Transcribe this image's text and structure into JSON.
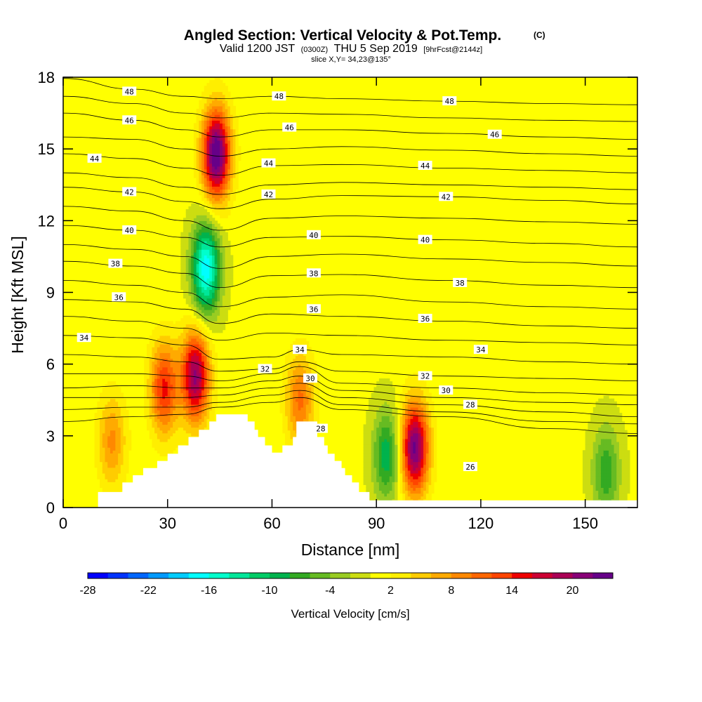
{
  "title": {
    "main": "Angled Section: Vertical Velocity & Pot.Temp.",
    "main_unit": "(C)",
    "valid_prefix": "Valid 1200 JST",
    "valid_utc": "(0300Z)",
    "valid_date": "THU 5 Sep 2019",
    "forecast": "[9hrFcst@2144z]",
    "slice": "slice X,Y= 34,23@135°"
  },
  "chart_data": {
    "type": "heatmap",
    "xlabel": "Distance [nm]",
    "ylabel": "Height [Kft MSL]",
    "xlim": [
      0,
      165
    ],
    "ylim": [
      0,
      18
    ],
    "x_ticks": [
      0,
      30,
      60,
      90,
      120,
      150
    ],
    "y_ticks": [
      0,
      3,
      6,
      9,
      12,
      15,
      18
    ],
    "colorbar": {
      "title": "Vertical Velocity [cm/s]",
      "tick_labels": [
        "-28",
        "-22",
        "-16",
        "-10",
        "-4",
        "2",
        "8",
        "14",
        "20"
      ],
      "tick_values": [
        -28,
        -22,
        -16,
        -10,
        -4,
        2,
        8,
        14,
        20
      ],
      "min": -28,
      "max": 24,
      "colors": [
        "#0000ff",
        "#0033ff",
        "#0066ff",
        "#0099ff",
        "#00ccff",
        "#00ffff",
        "#00ffcc",
        "#00e699",
        "#00cc66",
        "#00b34d",
        "#33aa22",
        "#66bb22",
        "#99cc22",
        "#ccdd11",
        "#ffff00",
        "#ffee00",
        "#ffcc00",
        "#ffaa00",
        "#ff8800",
        "#ff6600",
        "#ff4400",
        "#ee0000",
        "#cc0033",
        "#aa0055",
        "#880077",
        "#660088"
      ]
    },
    "field_features": [
      {
        "kind": "updraft",
        "x": 44,
        "y": 14.8,
        "peak": 24
      },
      {
        "kind": "downdraft",
        "x": 41,
        "y": 10.0,
        "peak": -18
      },
      {
        "kind": "updraft",
        "x": 38,
        "y": 5.5,
        "peak": 20
      },
      {
        "kind": "updraft",
        "x": 29,
        "y": 5.0,
        "peak": 14
      },
      {
        "kind": "updraft",
        "x": 14,
        "y": 2.8,
        "peak": 8
      },
      {
        "kind": "downdraft",
        "x": 93,
        "y": 2.2,
        "peak": -10
      },
      {
        "kind": "updraft",
        "x": 101,
        "y": 2.5,
        "peak": 22
      },
      {
        "kind": "downdraft",
        "x": 156,
        "y": 1.5,
        "peak": -8
      },
      {
        "kind": "updraft",
        "x": 68,
        "y": 4.5,
        "peak": 10
      }
    ],
    "terrain_steps": [
      [
        0,
        0
      ],
      [
        10,
        0.65
      ],
      [
        16,
        0.65
      ],
      [
        17,
        1.05
      ],
      [
        19,
        1.05
      ],
      [
        20,
        1.35
      ],
      [
        22,
        1.35
      ],
      [
        23,
        1.65
      ],
      [
        26,
        1.65
      ],
      [
        27,
        1.95
      ],
      [
        29,
        1.95
      ],
      [
        30,
        2.25
      ],
      [
        32,
        2.25
      ],
      [
        33,
        2.6
      ],
      [
        35,
        2.6
      ],
      [
        36,
        2.95
      ],
      [
        38,
        2.95
      ],
      [
        39,
        3.25
      ],
      [
        41,
        3.25
      ],
      [
        42,
        3.6
      ],
      [
        44,
        3.9
      ],
      [
        52,
        3.9
      ],
      [
        53,
        3.6
      ],
      [
        55,
        3.25
      ],
      [
        56,
        2.95
      ],
      [
        58,
        2.6
      ],
      [
        60,
        2.3
      ],
      [
        62,
        2.3
      ],
      [
        63,
        2.6
      ],
      [
        65,
        2.6
      ],
      [
        66,
        2.95
      ],
      [
        67,
        3.6
      ],
      [
        72,
        3.6
      ],
      [
        73,
        2.95
      ],
      [
        75,
        2.6
      ],
      [
        76,
        2.25
      ],
      [
        78,
        1.95
      ],
      [
        80,
        1.65
      ],
      [
        81,
        1.35
      ],
      [
        83,
        1.05
      ],
      [
        85,
        0.65
      ],
      [
        87,
        0.65
      ],
      [
        88,
        0.3
      ],
      [
        165,
        0.3
      ]
    ],
    "theta_contours": [
      {
        "value": 48,
        "label_positions": [
          [
            19,
            17.4
          ],
          [
            62,
            17.2
          ],
          [
            111,
            17.0
          ]
        ],
        "points": [
          [
            0,
            17.95
          ],
          [
            20,
            17.5
          ],
          [
            35,
            17.2
          ],
          [
            45,
            17.1
          ],
          [
            60,
            17.2
          ],
          [
            80,
            17.1
          ],
          [
            110,
            17.0
          ],
          [
            140,
            16.9
          ],
          [
            165,
            16.85
          ]
        ]
      },
      {
        "value": 47,
        "label_positions": [],
        "points": [
          [
            0,
            17.2
          ],
          [
            20,
            16.9
          ],
          [
            35,
            16.5
          ],
          [
            45,
            16.3
          ],
          [
            60,
            16.5
          ],
          [
            80,
            16.45
          ],
          [
            110,
            16.3
          ],
          [
            140,
            16.2
          ],
          [
            165,
            16.15
          ]
        ]
      },
      {
        "value": 46,
        "label_positions": [
          [
            19,
            16.2
          ],
          [
            65,
            15.9
          ],
          [
            124,
            15.6
          ]
        ],
        "points": [
          [
            0,
            16.5
          ],
          [
            20,
            16.2
          ],
          [
            35,
            15.8
          ],
          [
            45,
            15.5
          ],
          [
            60,
            15.8
          ],
          [
            80,
            15.8
          ],
          [
            110,
            15.65
          ],
          [
            140,
            15.5
          ],
          [
            165,
            15.4
          ]
        ]
      },
      {
        "value": 45,
        "label_positions": [],
        "points": [
          [
            0,
            15.5
          ],
          [
            20,
            15.4
          ],
          [
            35,
            15.0
          ],
          [
            45,
            14.7
          ],
          [
            60,
            15.0
          ],
          [
            80,
            15.1
          ],
          [
            110,
            14.95
          ],
          [
            140,
            14.8
          ],
          [
            165,
            14.7
          ]
        ]
      },
      {
        "value": 44,
        "label_positions": [
          [
            9,
            14.6
          ],
          [
            59,
            14.4
          ],
          [
            104,
            14.3
          ]
        ],
        "points": [
          [
            0,
            14.8
          ],
          [
            20,
            14.6
          ],
          [
            35,
            14.2
          ],
          [
            45,
            13.9
          ],
          [
            60,
            14.3
          ],
          [
            80,
            14.35
          ],
          [
            110,
            14.2
          ],
          [
            140,
            14.1
          ],
          [
            165,
            14.0
          ]
        ]
      },
      {
        "value": 43,
        "label_positions": [],
        "points": [
          [
            0,
            14.0
          ],
          [
            20,
            13.8
          ],
          [
            35,
            13.4
          ],
          [
            45,
            13.1
          ],
          [
            60,
            13.5
          ],
          [
            80,
            13.6
          ],
          [
            110,
            13.5
          ],
          [
            140,
            13.4
          ],
          [
            165,
            13.3
          ]
        ]
      },
      {
        "value": 42,
        "label_positions": [
          [
            19,
            13.2
          ],
          [
            59,
            13.1
          ],
          [
            110,
            13.0
          ]
        ],
        "points": [
          [
            0,
            13.4
          ],
          [
            20,
            13.2
          ],
          [
            35,
            12.8
          ],
          [
            45,
            12.5
          ],
          [
            60,
            12.9
          ],
          [
            80,
            13.05
          ],
          [
            110,
            13.0
          ],
          [
            140,
            12.85
          ],
          [
            165,
            12.7
          ]
        ]
      },
      {
        "value": 41,
        "label_positions": [],
        "points": [
          [
            0,
            12.6
          ],
          [
            20,
            12.4
          ],
          [
            35,
            12.0
          ],
          [
            45,
            11.6
          ],
          [
            60,
            12.1
          ],
          [
            80,
            12.2
          ],
          [
            110,
            12.1
          ],
          [
            140,
            11.95
          ],
          [
            165,
            11.85
          ]
        ]
      },
      {
        "value": 40,
        "label_positions": [
          [
            19,
            11.6
          ],
          [
            72,
            11.4
          ],
          [
            104,
            11.2
          ]
        ],
        "points": [
          [
            0,
            11.8
          ],
          [
            20,
            11.6
          ],
          [
            35,
            11.3
          ],
          [
            45,
            10.9
          ],
          [
            60,
            11.3
          ],
          [
            80,
            11.35
          ],
          [
            110,
            11.2
          ],
          [
            140,
            11.05
          ],
          [
            165,
            10.9
          ]
        ]
      },
      {
        "value": 39,
        "label_positions": [],
        "points": [
          [
            0,
            11.0
          ],
          [
            20,
            10.8
          ],
          [
            35,
            10.5
          ],
          [
            45,
            10.0
          ],
          [
            60,
            10.5
          ],
          [
            80,
            10.6
          ],
          [
            110,
            10.4
          ],
          [
            140,
            10.25
          ],
          [
            165,
            10.1
          ]
        ]
      },
      {
        "value": 38,
        "label_positions": [
          [
            15,
            10.2
          ],
          [
            72,
            9.8
          ],
          [
            114,
            9.4
          ]
        ],
        "points": [
          [
            0,
            10.3
          ],
          [
            20,
            10.1
          ],
          [
            35,
            9.8
          ],
          [
            45,
            9.2
          ],
          [
            60,
            9.7
          ],
          [
            80,
            9.75
          ],
          [
            110,
            9.5
          ],
          [
            140,
            9.3
          ],
          [
            165,
            9.2
          ]
        ]
      },
      {
        "value": 37,
        "label_positions": [],
        "points": [
          [
            0,
            9.5
          ],
          [
            20,
            9.3
          ],
          [
            35,
            9.0
          ],
          [
            45,
            8.4
          ],
          [
            60,
            8.8
          ],
          [
            80,
            8.9
          ],
          [
            110,
            8.6
          ],
          [
            140,
            8.4
          ],
          [
            165,
            8.3
          ]
        ]
      },
      {
        "value": 36,
        "label_positions": [
          [
            16,
            8.8
          ],
          [
            72,
            8.3
          ],
          [
            104,
            7.9
          ]
        ],
        "points": [
          [
            0,
            8.7
          ],
          [
            20,
            8.6
          ],
          [
            35,
            8.3
          ],
          [
            45,
            7.7
          ],
          [
            60,
            8.1
          ],
          [
            80,
            8.0
          ],
          [
            110,
            7.8
          ],
          [
            140,
            7.6
          ],
          [
            165,
            7.5
          ]
        ]
      },
      {
        "value": 35,
        "label_positions": [],
        "points": [
          [
            0,
            8.0
          ],
          [
            20,
            7.8
          ],
          [
            35,
            7.5
          ],
          [
            45,
            7.0
          ],
          [
            60,
            7.3
          ],
          [
            80,
            7.2
          ],
          [
            110,
            7.0
          ],
          [
            140,
            6.9
          ],
          [
            165,
            6.8
          ]
        ]
      },
      {
        "value": 34,
        "label_positions": [
          [
            6,
            7.1
          ],
          [
            68,
            6.6
          ],
          [
            120,
            6.6
          ]
        ],
        "points": [
          [
            0,
            7.2
          ],
          [
            20,
            7.1
          ],
          [
            35,
            6.8
          ],
          [
            45,
            6.2
          ],
          [
            60,
            6.3
          ],
          [
            68,
            6.6
          ],
          [
            80,
            6.4
          ],
          [
            110,
            6.3
          ],
          [
            140,
            6.1
          ],
          [
            165,
            6.0
          ]
        ]
      },
      {
        "value": 33,
        "label_positions": [],
        "points": [
          [
            0,
            6.4
          ],
          [
            20,
            6.3
          ],
          [
            35,
            6.1
          ],
          [
            45,
            5.7
          ],
          [
            60,
            5.8
          ],
          [
            68,
            6.1
          ],
          [
            80,
            5.7
          ],
          [
            110,
            5.5
          ],
          [
            140,
            5.4
          ],
          [
            165,
            5.3
          ]
        ]
      },
      {
        "value": 32,
        "label_positions": [
          [
            58,
            5.8
          ],
          [
            104,
            5.5
          ]
        ],
        "points": [
          [
            0,
            5.6
          ],
          [
            20,
            5.6
          ],
          [
            35,
            5.5
          ],
          [
            45,
            5.3
          ],
          [
            60,
            5.6
          ],
          [
            68,
            5.9
          ],
          [
            80,
            5.2
          ],
          [
            110,
            5.0
          ],
          [
            140,
            4.8
          ],
          [
            165,
            4.7
          ]
        ]
      },
      {
        "value": 31,
        "label_positions": [],
        "points": [
          [
            0,
            5.0
          ],
          [
            20,
            5.1
          ],
          [
            35,
            5.0
          ],
          [
            45,
            5.0
          ],
          [
            60,
            5.3
          ],
          [
            68,
            5.5
          ],
          [
            80,
            4.9
          ],
          [
            110,
            4.6
          ],
          [
            140,
            4.4
          ],
          [
            165,
            4.3
          ]
        ]
      },
      {
        "value": 30,
        "label_positions": [
          [
            71,
            5.4
          ],
          [
            110,
            4.9
          ]
        ],
        "points": [
          [
            0,
            4.6
          ],
          [
            20,
            4.6
          ],
          [
            35,
            4.6
          ],
          [
            45,
            4.7
          ],
          [
            60,
            5.0
          ],
          [
            68,
            5.2
          ],
          [
            80,
            4.6
          ],
          [
            110,
            4.3
          ],
          [
            140,
            4.0
          ],
          [
            165,
            3.8
          ]
        ]
      },
      {
        "value": 29,
        "label_positions": [],
        "points": [
          [
            0,
            4.1
          ],
          [
            20,
            4.2
          ],
          [
            35,
            4.2
          ],
          [
            45,
            4.4
          ],
          [
            60,
            4.7
          ],
          [
            68,
            4.9
          ],
          [
            80,
            4.3
          ],
          [
            110,
            4.0
          ],
          [
            140,
            3.6
          ],
          [
            165,
            3.5
          ]
        ]
      },
      {
        "value": 28,
        "label_positions": [
          [
            74,
            3.3
          ],
          [
            117,
            4.3
          ]
        ],
        "points": [
          [
            0,
            3.6
          ],
          [
            20,
            3.8
          ],
          [
            35,
            3.9
          ],
          [
            45,
            4.2
          ],
          [
            60,
            4.4
          ],
          [
            68,
            4.6
          ],
          [
            80,
            4.1
          ],
          [
            110,
            3.8
          ],
          [
            140,
            3.3
          ],
          [
            165,
            3.1
          ]
        ]
      }
    ],
    "secondary_labels": [
      {
        "value": 26,
        "x": 117,
        "y": 1.7
      }
    ]
  }
}
